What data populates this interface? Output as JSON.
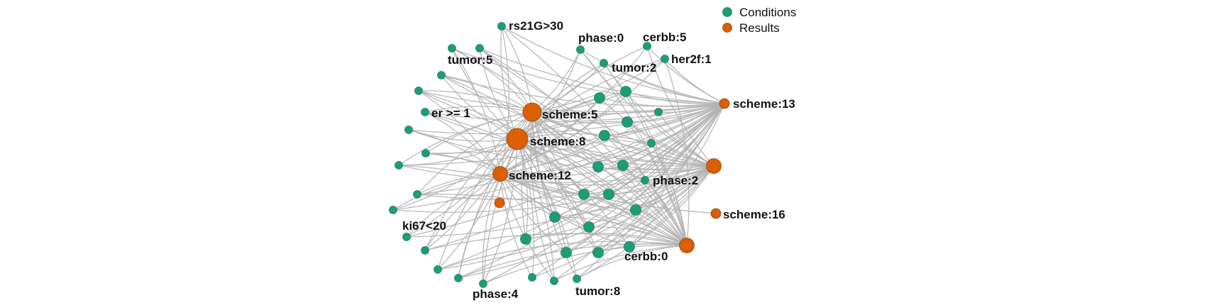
{
  "legend": {
    "conditions_label": "Conditions",
    "results_label": "Results",
    "conditions_color": "#1b9e77",
    "results_color": "#d95f02"
  },
  "nodes": [
    {
      "id": "scheme5",
      "type": "result",
      "label": "scheme:5",
      "size": "large"
    },
    {
      "id": "scheme8",
      "type": "result",
      "label": "scheme:8",
      "size": "xlarge"
    },
    {
      "id": "scheme12",
      "type": "result",
      "label": "scheme:12",
      "size": "medium"
    },
    {
      "id": "scheme13",
      "type": "result",
      "label": "scheme:13",
      "size": "small"
    },
    {
      "id": "scheme16",
      "type": "result",
      "label": "scheme:16",
      "size": "small"
    },
    {
      "id": "resA",
      "type": "result",
      "label": "",
      "size": "medium"
    },
    {
      "id": "resB",
      "type": "result",
      "label": "",
      "size": "medium"
    },
    {
      "id": "resC",
      "type": "result",
      "label": "",
      "size": "small"
    },
    {
      "id": "rs21G",
      "type": "condition",
      "label": "rs21G>30"
    },
    {
      "id": "tumor5",
      "type": "condition",
      "label": "tumor:5"
    },
    {
      "id": "er1",
      "type": "condition",
      "label": "er >= 1"
    },
    {
      "id": "ki67",
      "type": "condition",
      "label": "ki67<20"
    },
    {
      "id": "phase4",
      "type": "condition",
      "label": "phase:4"
    },
    {
      "id": "tumor8",
      "type": "condition",
      "label": "tumor:8"
    },
    {
      "id": "phase0",
      "type": "condition",
      "label": "phase:0"
    },
    {
      "id": "cerbb5",
      "type": "condition",
      "label": "cerbb:5"
    },
    {
      "id": "her2f1",
      "type": "condition",
      "label": "her2f:1"
    },
    {
      "id": "tumor2",
      "type": "condition",
      "label": "tumor:2"
    },
    {
      "id": "phase2",
      "type": "condition",
      "label": "phase:2"
    },
    {
      "id": "cerbb0",
      "type": "condition",
      "label": "cerbb:0"
    }
  ]
}
